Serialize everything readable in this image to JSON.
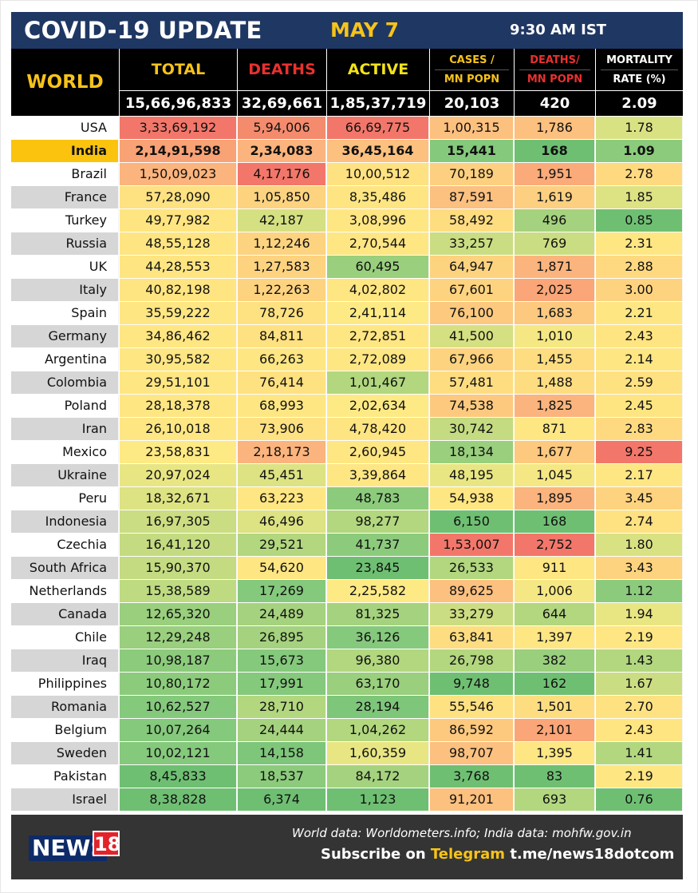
{
  "header": {
    "title": "COVID-19 UPDATE",
    "date": "MAY 7",
    "time": "9:30 AM IST"
  },
  "table_header": {
    "world": "WORLD",
    "total": "TOTAL",
    "deaths": "DEATHS",
    "active": "ACTIVE",
    "cases_mn_1": "CASES /",
    "cases_mn_2": "MN POPN",
    "deaths_mn_1": "DEATHS/",
    "deaths_mn_2": "MN POPN",
    "mortality_1": "MORTALITY",
    "mortality_2": "RATE (%)"
  },
  "colors": {
    "header_bg": "#1f3763",
    "date": "#f7c31a",
    "world": "#f7c31a",
    "total_hdr": "#f7c31a",
    "deaths_hdr": "#e8312f",
    "active_hdr": "#f3e21a",
    "cases_mn_hdr": "#f7c31a",
    "deaths_mn_hdr": "#e8312f",
    "mortality_hdr": "#ffffff",
    "india_label_bg": "#fbc30e",
    "footer_bg": "#343434",
    "telegram": "#f7c31a"
  },
  "world_totals": {
    "total": "15,66,96,833",
    "deaths": "32,69,661",
    "active": "1,85,37,719",
    "cases_per_mn": "20,103",
    "deaths_per_mn": "420",
    "mortality": "2.09"
  },
  "chart_data": {
    "type": "table",
    "columns": [
      "TOTAL",
      "DEATHS",
      "ACTIVE",
      "CASES / MN POPN",
      "DEATHS/ MN POPN",
      "MORTALITY RATE (%)"
    ],
    "rows": [
      {
        "country": "USA",
        "values": [
          "3,33,69,192",
          "5,94,006",
          "66,69,775",
          "1,00,315",
          "1,786",
          "1.78"
        ],
        "colors": [
          "#f2776a",
          "#f48b6d",
          "#f2776a",
          "#fcc07f",
          "#fcc07f",
          "#d9e283"
        ]
      },
      {
        "country": "India",
        "values": [
          "2,14,91,598",
          "2,34,083",
          "36,45,164",
          "15,441",
          "168",
          "1.09"
        ],
        "colors": [
          "#f8a275",
          "#fbb47d",
          "#fcc07f",
          "#85c97c",
          "#6fbf73",
          "#8ccb7c"
        ]
      },
      {
        "country": "Brazil",
        "values": [
          "1,50,09,023",
          "4,17,176",
          "10,00,512",
          "70,189",
          "1,951",
          "2.78"
        ],
        "colors": [
          "#fbb47d",
          "#f2776a",
          "#fee181",
          "#fcd080",
          "#faab79",
          "#fed980"
        ]
      },
      {
        "country": "France",
        "values": [
          "57,28,090",
          "1,05,850",
          "8,35,486",
          "87,591",
          "1,619",
          "1.85"
        ],
        "colors": [
          "#fee181",
          "#fdd37f",
          "#fee581",
          "#fcc07f",
          "#fcd080",
          "#dde283"
        ]
      },
      {
        "country": "Turkey",
        "values": [
          "49,77,982",
          "42,187",
          "3,08,996",
          "58,492",
          "496",
          "0.85"
        ],
        "colors": [
          "#fee581",
          "#d5e082",
          "#fee683",
          "#fedd81",
          "#a5d27e",
          "#6fbf73"
        ]
      },
      {
        "country": "Russia",
        "values": [
          "48,55,128",
          "1,12,246",
          "2,70,544",
          "33,257",
          "769",
          "2.31"
        ],
        "colors": [
          "#fee581",
          "#fdd37f",
          "#fee683",
          "#cbdd82",
          "#cbdd82",
          "#fee683"
        ]
      },
      {
        "country": "UK",
        "values": [
          "44,28,553",
          "1,27,583",
          "60,495",
          "64,947",
          "1,871",
          "2.88"
        ],
        "colors": [
          "#fee581",
          "#fdd37f",
          "#99cf7d",
          "#fdd37f",
          "#fbb47d",
          "#fed980"
        ]
      },
      {
        "country": "Italy",
        "values": [
          "40,82,198",
          "1,22,263",
          "4,02,802",
          "67,601",
          "2,025",
          "3.00"
        ],
        "colors": [
          "#fee581",
          "#fdd37f",
          "#fee683",
          "#fdd37f",
          "#faa678",
          "#fdd37f"
        ]
      },
      {
        "country": "Spain",
        "values": [
          "35,59,222",
          "78,726",
          "2,41,114",
          "76,100",
          "1,683",
          "2.21"
        ],
        "colors": [
          "#fee683",
          "#fee181",
          "#feea84",
          "#fcc97f",
          "#fcc97f",
          "#fee683"
        ]
      },
      {
        "country": "Germany",
        "values": [
          "34,86,462",
          "84,811",
          "2,72,851",
          "41,500",
          "1,010",
          "2.43"
        ],
        "colors": [
          "#fee683",
          "#fee181",
          "#fee683",
          "#d5e082",
          "#f5e884",
          "#fee581"
        ]
      },
      {
        "country": "Argentina",
        "values": [
          "30,95,582",
          "66,263",
          "2,72,089",
          "67,966",
          "1,455",
          "2.14"
        ],
        "colors": [
          "#fee683",
          "#fee683",
          "#fee683",
          "#fdd37f",
          "#fedd81",
          "#fee683"
        ]
      },
      {
        "country": "Colombia",
        "values": [
          "29,51,101",
          "76,414",
          "1,01,467",
          "57,481",
          "1,488",
          "2.59"
        ],
        "colors": [
          "#fee683",
          "#fee181",
          "#b2d77f",
          "#fedd81",
          "#fedd81",
          "#fee181"
        ]
      },
      {
        "country": "Poland",
        "values": [
          "28,18,378",
          "68,993",
          "2,02,634",
          "74,538",
          "1,825",
          "2.45"
        ],
        "colors": [
          "#fee683",
          "#fee683",
          "#feea84",
          "#fcc97f",
          "#fbb47d",
          "#fee581"
        ]
      },
      {
        "country": "Iran",
        "values": [
          "26,10,018",
          "73,906",
          "4,78,420",
          "30,742",
          "871",
          "2.83"
        ],
        "colors": [
          "#fee683",
          "#fee181",
          "#fee581",
          "#c4db81",
          "#fee683",
          "#fed980"
        ]
      },
      {
        "country": "Mexico",
        "values": [
          "23,58,831",
          "2,18,173",
          "2,60,945",
          "18,134",
          "1,677",
          "9.25"
        ],
        "colors": [
          "#feea84",
          "#fbb47d",
          "#fee683",
          "#99cf7d",
          "#fcc97f",
          "#f2776a"
        ]
      },
      {
        "country": "Ukraine",
        "values": [
          "20,97,024",
          "45,451",
          "3,39,864",
          "48,195",
          "1,045",
          "2.17"
        ],
        "colors": [
          "#e8e683",
          "#dde283",
          "#fee683",
          "#e8e683",
          "#f5e884",
          "#fee683"
        ]
      },
      {
        "country": "Peru",
        "values": [
          "18,32,671",
          "63,223",
          "48,783",
          "54,938",
          "1,895",
          "3.45"
        ],
        "colors": [
          "#dde283",
          "#fee683",
          "#8ccb7c",
          "#fee683",
          "#fbb47d",
          "#fdd37f"
        ]
      },
      {
        "country": "Indonesia",
        "values": [
          "16,97,305",
          "46,496",
          "98,277",
          "6,150",
          "168",
          "2.74"
        ],
        "colors": [
          "#cbdd82",
          "#dde283",
          "#b2d77f",
          "#6fbf73",
          "#6fbf73",
          "#fee181"
        ]
      },
      {
        "country": "Czechia",
        "values": [
          "16,41,120",
          "29,521",
          "41,737",
          "1,53,007",
          "2,752",
          "1.80"
        ],
        "colors": [
          "#c4db81",
          "#b2d77f",
          "#8ccb7c",
          "#f2776a",
          "#f2776a",
          "#d9e283"
        ]
      },
      {
        "country": "South Africa",
        "values": [
          "15,90,370",
          "54,620",
          "23,845",
          "26,533",
          "911",
          "3.43"
        ],
        "colors": [
          "#c4db81",
          "#fee683",
          "#6fbf73",
          "#b2d77f",
          "#fee683",
          "#fdd37f"
        ]
      },
      {
        "country": "Netherlands",
        "values": [
          "15,38,589",
          "17,269",
          "2,25,582",
          "89,625",
          "1,006",
          "1.12"
        ],
        "colors": [
          "#bedb81",
          "#85c97c",
          "#feea84",
          "#fcc07f",
          "#f5e884",
          "#8ccb7c"
        ]
      },
      {
        "country": "Canada",
        "values": [
          "12,65,320",
          "24,489",
          "81,325",
          "33,279",
          "644",
          "1.94"
        ],
        "colors": [
          "#99cf7d",
          "#a5d27e",
          "#a5d27e",
          "#cbdd82",
          "#b2d77f",
          "#e8e683"
        ]
      },
      {
        "country": "Chile",
        "values": [
          "12,29,248",
          "26,895",
          "36,126",
          "63,841",
          "1,397",
          "2.19"
        ],
        "colors": [
          "#99cf7d",
          "#a5d27e",
          "#85c97c",
          "#fedd81",
          "#fee683",
          "#fee683"
        ]
      },
      {
        "country": "Iraq",
        "values": [
          "10,98,187",
          "15,673",
          "96,380",
          "26,798",
          "382",
          "1.43"
        ],
        "colors": [
          "#8ccb7c",
          "#85c97c",
          "#b2d77f",
          "#b2d77f",
          "#99cf7d",
          "#b2d77f"
        ]
      },
      {
        "country": "Philippines",
        "values": [
          "10,80,172",
          "17,991",
          "63,170",
          "9,748",
          "162",
          "1.67"
        ],
        "colors": [
          "#8ccb7c",
          "#85c97c",
          "#99cf7d",
          "#6fbf73",
          "#6fbf73",
          "#cbdd82"
        ]
      },
      {
        "country": "Romania",
        "values": [
          "10,62,527",
          "28,710",
          "28,194",
          "55,546",
          "1,501",
          "2.70"
        ],
        "colors": [
          "#85c97c",
          "#b2d77f",
          "#7ec67a",
          "#fee181",
          "#fedd81",
          "#fee181"
        ]
      },
      {
        "country": "Belgium",
        "values": [
          "10,07,264",
          "24,444",
          "1,04,262",
          "86,592",
          "2,101",
          "2.43"
        ],
        "colors": [
          "#85c97c",
          "#a5d27e",
          "#b2d77f",
          "#fcc97f",
          "#faa678",
          "#fee581"
        ]
      },
      {
        "country": "Sweden",
        "values": [
          "10,02,121",
          "14,158",
          "1,60,359",
          "98,707",
          "1,395",
          "1.41"
        ],
        "colors": [
          "#85c97c",
          "#7ec67a",
          "#e8e683",
          "#fcc07f",
          "#fee683",
          "#b2d77f"
        ]
      },
      {
        "country": "Pakistan",
        "values": [
          "8,45,833",
          "18,537",
          "84,172",
          "3,768",
          "83",
          "2.19"
        ],
        "colors": [
          "#6fbf73",
          "#8ccb7c",
          "#a5d27e",
          "#6fbf73",
          "#6fbf73",
          "#fee683"
        ]
      },
      {
        "country": "Israel",
        "values": [
          "8,38,828",
          "6,374",
          "1,123",
          "91,201",
          "693",
          "0.76"
        ],
        "colors": [
          "#6fbf73",
          "#6fbf73",
          "#6fbf73",
          "#fcc07f",
          "#b2d77f",
          "#6fbf73"
        ]
      }
    ]
  },
  "footer": {
    "logo_news": "NEWS",
    "logo_18": "18",
    "source": "World data: Worldometers.info; India data: mohfw.gov.in",
    "subscribe_prefix": "Subscribe on ",
    "subscribe_platform": "Telegram",
    "subscribe_link": " t.me/news18dotcom"
  }
}
